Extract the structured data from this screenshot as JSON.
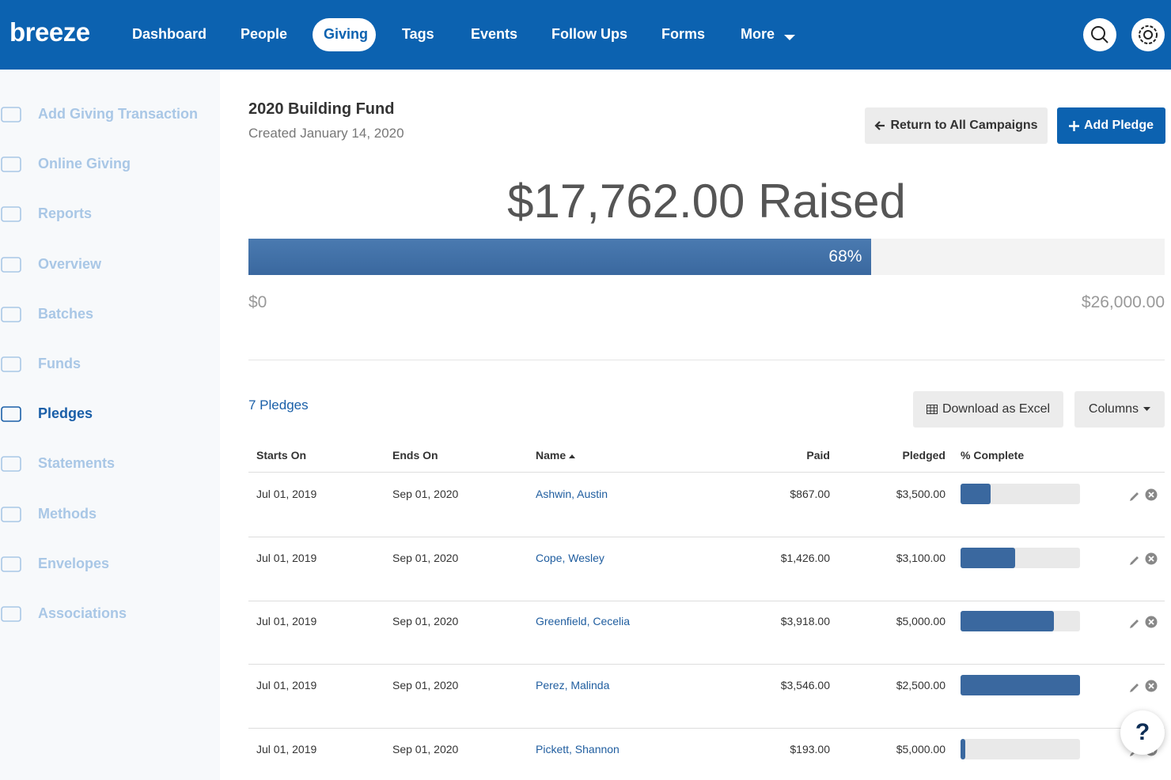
{
  "nav": {
    "logo": "breeze",
    "items": [
      "Dashboard",
      "People",
      "Giving",
      "Tags",
      "Events",
      "Follow Ups",
      "Forms",
      "More"
    ],
    "active": 2
  },
  "sidebar": {
    "items": [
      "Add Giving Transaction",
      "Online Giving",
      "Reports",
      "Overview",
      "Batches",
      "Funds",
      "Pledges",
      "Statements",
      "Methods",
      "Envelopes",
      "Associations"
    ],
    "active": 6
  },
  "campaign": {
    "title": "2020 Building Fund",
    "created": "Created January 14, 2020",
    "buttons": [
      "Return to All Campaigns",
      "Add Pledge"
    ],
    "raised": "$17,762.00 Raised",
    "progress": {
      "value": 68,
      "label": "68%"
    },
    "min_label": "$0",
    "max_label": "$26,000.00"
  },
  "pledges": {
    "count": "7 Pledges",
    "buttons": [
      "Download as Excel",
      "Columns"
    ],
    "columns": [
      "Starts On",
      "Ends On",
      "Name",
      "Paid",
      "Pledged",
      "% Complete"
    ],
    "rows": [
      [
        "Jul 01, 2019",
        "Sep 01, 2020",
        "Ashwin, Austin",
        "$867.00",
        "$3,500.00"
      ],
      [
        "Jul 01, 2019",
        "Sep 01, 2020",
        "Cope, Wesley",
        "$1,426.00",
        "$3,100.00"
      ],
      [
        "Jul 01, 2019",
        "Sep 01, 2020",
        "Greenfield, Cecelia",
        "$3,918.00",
        "$5,000.00"
      ],
      [
        "Jul 01, 2019",
        "Sep 01, 2020",
        "Perez, Malinda",
        "$3,546.00",
        "$2,500.00"
      ],
      [
        "Jul 01, 2019",
        "Sep 01, 2020",
        "Pickett, Shannon",
        "$193.00",
        "$5,000.00"
      ]
    ],
    "complete": [
      25,
      46,
      78,
      100,
      4
    ]
  },
  "help": "?"
}
